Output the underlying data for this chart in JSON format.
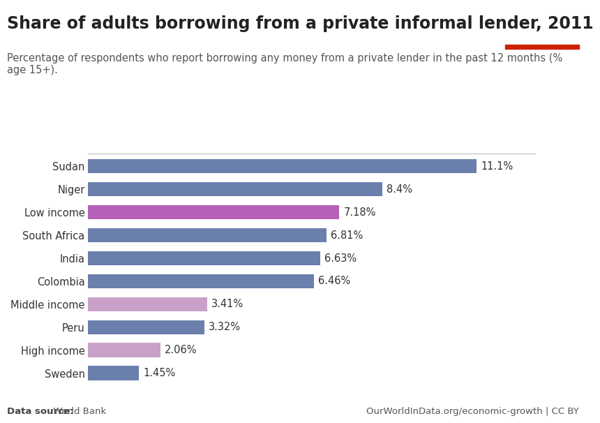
{
  "title": "Share of adults borrowing from a private informal lender, 2011",
  "subtitle": "Percentage of respondents who report borrowing any money from a private lender in the past 12 months (%\nage 15+).",
  "categories": [
    "Sweden",
    "High income",
    "Peru",
    "Middle income",
    "Colombia",
    "India",
    "South Africa",
    "Low income",
    "Niger",
    "Sudan"
  ],
  "values": [
    1.45,
    2.06,
    3.32,
    3.41,
    6.46,
    6.63,
    6.81,
    7.18,
    8.4,
    11.1
  ],
  "labels": [
    "1.45%",
    "2.06%",
    "3.32%",
    "3.41%",
    "6.46%",
    "6.63%",
    "6.81%",
    "7.18%",
    "8.4%",
    "11.1%"
  ],
  "colors": [
    "#6b7fad",
    "#c9a0c8",
    "#6b7fad",
    "#c9a0c8",
    "#6b7fad",
    "#6b7fad",
    "#6b7fad",
    "#b660b8",
    "#6b7fad",
    "#6b7fad"
  ],
  "data_source_bold": "Data source:",
  "data_source_rest": " World Bank",
  "footer_right": "OurWorldInData.org/economic-growth | CC BY",
  "background_color": "#ffffff",
  "bar_height": 0.62,
  "xlim": [
    0,
    12.8
  ],
  "title_fontsize": 17,
  "subtitle_fontsize": 10.5,
  "label_fontsize": 10.5,
  "tick_fontsize": 10.5,
  "footer_fontsize": 9.5,
  "logo_bg": "#1a3460",
  "logo_red": "#cc2200",
  "logo_text_color": "#ffffff"
}
